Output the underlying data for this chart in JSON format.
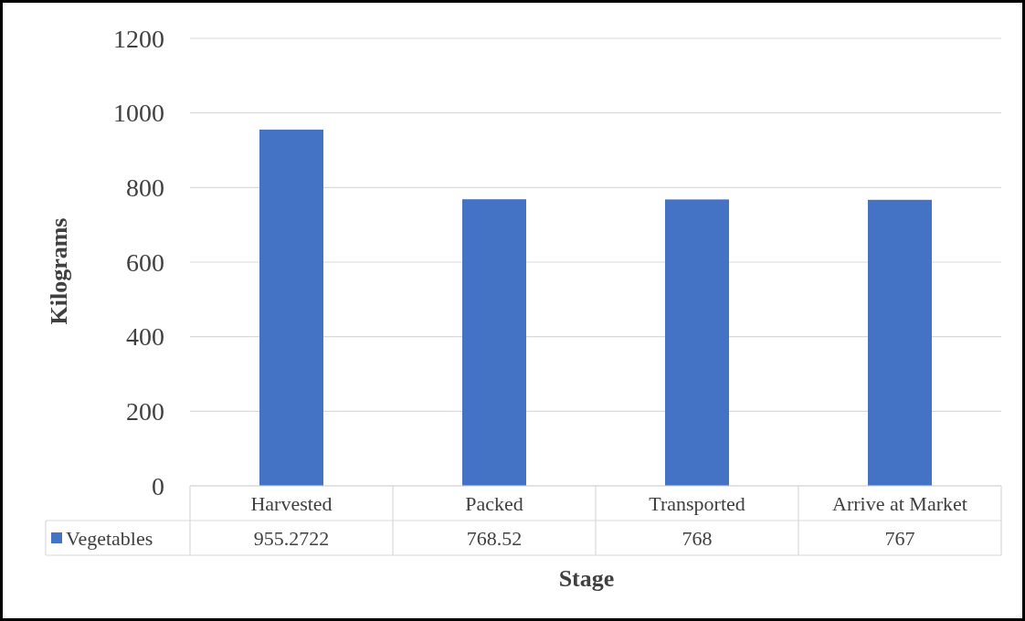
{
  "chart_data": {
    "type": "bar",
    "xlabel": "Stage",
    "ylabel": "Kilograms",
    "categories": [
      "Harvested",
      "Packed",
      "Transported",
      "Arrive at Market"
    ],
    "series": [
      {
        "name": "Vegetables",
        "color": "#4472c4",
        "values": [
          955.2722,
          768.52,
          768,
          767
        ]
      }
    ],
    "ylim": [
      0,
      1200
    ],
    "yticks": [
      0,
      200,
      400,
      600,
      800,
      1000,
      1200
    ],
    "grid": "y",
    "data_labels": true
  }
}
